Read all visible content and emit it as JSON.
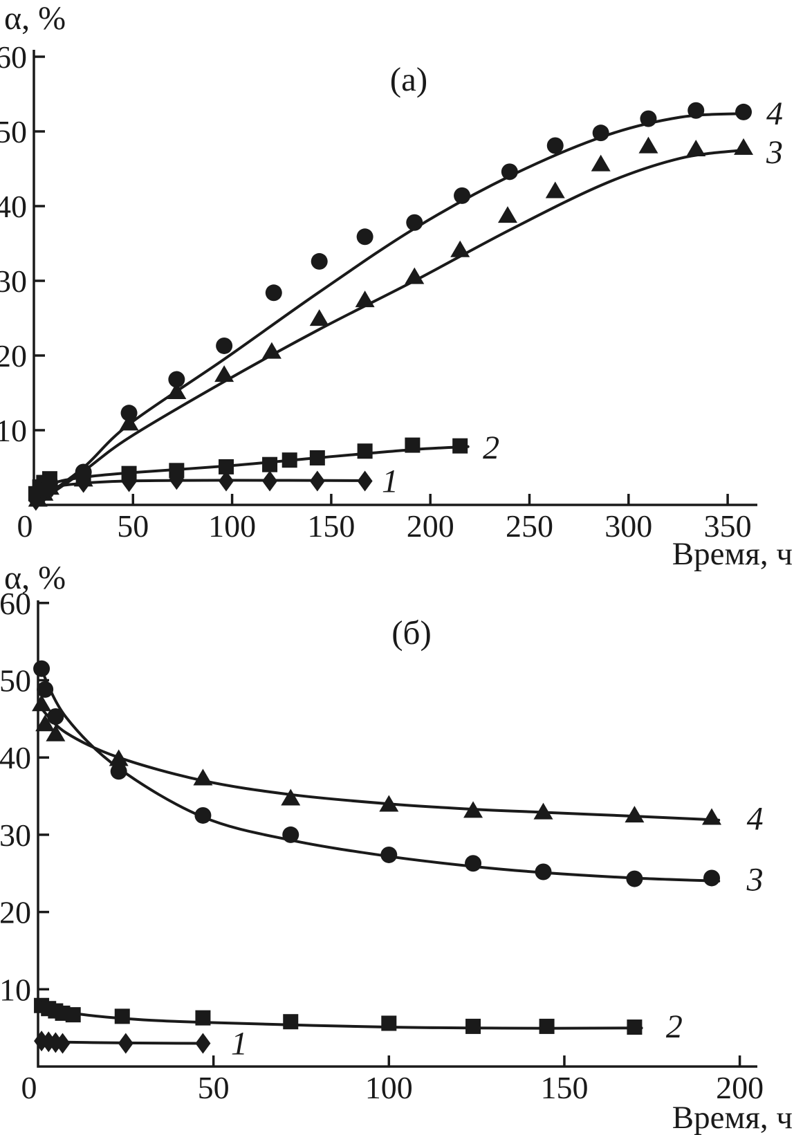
{
  "figure": {
    "background": "#ffffff",
    "ink_color": "#1a1a1a"
  },
  "chart_data": [
    {
      "type": "line",
      "panel_label": "(а)",
      "xlabel": "Время, ч",
      "ylabel": "α, %",
      "xlim": [
        0,
        365
      ],
      "ylim": [
        0,
        60
      ],
      "x_ticks": [
        0,
        50,
        100,
        150,
        200,
        250,
        300,
        350
      ],
      "y_ticks": [
        10,
        20,
        30,
        40,
        50,
        60
      ],
      "grid": false,
      "legend_position": "labels-at-line-ends",
      "series": [
        {
          "name": "1",
          "marker": "diamond",
          "label_at": [
            172,
            3.2
          ],
          "points": [
            [
              1,
              0.6
            ],
            [
              2,
              1.1
            ],
            [
              4,
              1.6
            ],
            [
              6,
              2.0
            ],
            [
              9,
              2.4
            ],
            [
              25,
              3.0
            ],
            [
              48,
              3.1
            ],
            [
              72,
              3.4
            ],
            [
              97,
              3.2
            ],
            [
              119,
              3.2
            ],
            [
              143,
              3.2
            ],
            [
              167,
              3.2
            ]
          ],
          "curve": [
            [
              1,
              0.6
            ],
            [
              10,
              2.3
            ],
            [
              25,
              2.9
            ],
            [
              48,
              3.2
            ],
            [
              97,
              3.3
            ],
            [
              167,
              3.25
            ]
          ]
        },
        {
          "name": "2",
          "marker": "square",
          "label_at": [
            223,
            7.7
          ],
          "points": [
            [
              1,
              1.5
            ],
            [
              3,
              2.4
            ],
            [
              5,
              3.0
            ],
            [
              8,
              3.5
            ],
            [
              25,
              3.8
            ],
            [
              48,
              4.2
            ],
            [
              72,
              4.6
            ],
            [
              97,
              5.1
            ],
            [
              119,
              5.4
            ],
            [
              129,
              6.0
            ],
            [
              143,
              6.3
            ],
            [
              167,
              7.2
            ],
            [
              191,
              8.0
            ],
            [
              215,
              7.9
            ]
          ],
          "curve": [
            [
              1,
              1.2
            ],
            [
              10,
              2.9
            ],
            [
              25,
              3.7
            ],
            [
              48,
              4.3
            ],
            [
              97,
              5.2
            ],
            [
              143,
              6.3
            ],
            [
              191,
              7.4
            ],
            [
              219,
              7.8
            ]
          ]
        },
        {
          "name": "3",
          "marker": "triangle",
          "label_at": [
            366,
            47.2
          ],
          "points": [
            [
              2,
              0.6
            ],
            [
              5,
              1.4
            ],
            [
              8,
              2.2
            ],
            [
              25,
              3.3
            ],
            [
              48,
              10.8
            ],
            [
              72,
              15.0
            ],
            [
              96,
              17.3
            ],
            [
              120,
              20.4
            ],
            [
              144,
              24.8
            ],
            [
              167,
              27.3
            ],
            [
              192,
              30.4
            ],
            [
              215,
              34.0
            ],
            [
              239,
              38.6
            ],
            [
              263,
              41.9
            ],
            [
              286,
              45.5
            ],
            [
              310,
              47.9
            ],
            [
              334,
              47.5
            ],
            [
              358,
              47.7
            ]
          ],
          "curve": [
            [
              2,
              0.3
            ],
            [
              25,
              4.5
            ],
            [
              48,
              9.0
            ],
            [
              96,
              16.5
            ],
            [
              144,
              23.5
            ],
            [
              192,
              30.0
            ],
            [
              240,
              36.8
            ],
            [
              288,
              43.0
            ],
            [
              326,
              46.4
            ],
            [
              358,
              47.5
            ]
          ]
        },
        {
          "name": "4",
          "marker": "circle",
          "label_at": [
            366,
            52.4
          ],
          "points": [
            [
              2,
              1.0
            ],
            [
              5,
              2.0
            ],
            [
              8,
              3.0
            ],
            [
              25,
              4.4
            ],
            [
              48,
              12.3
            ],
            [
              72,
              16.8
            ],
            [
              96,
              21.3
            ],
            [
              121,
              28.4
            ],
            [
              144,
              32.6
            ],
            [
              167,
              35.9
            ],
            [
              192,
              37.8
            ],
            [
              216,
              41.4
            ],
            [
              240,
              44.6
            ],
            [
              263,
              48.1
            ],
            [
              286,
              49.8
            ],
            [
              310,
              51.7
            ],
            [
              334,
              52.8
            ],
            [
              358,
              52.6
            ]
          ],
          "curve": [
            [
              2,
              0.5
            ],
            [
              25,
              5.0
            ],
            [
              48,
              10.8
            ],
            [
              96,
              19.5
            ],
            [
              144,
              28.5
            ],
            [
              192,
              37.0
            ],
            [
              240,
              44.0
            ],
            [
              288,
              49.4
            ],
            [
              326,
              51.9
            ],
            [
              358,
              52.4
            ]
          ]
        }
      ]
    },
    {
      "type": "line",
      "panel_label": "(б)",
      "xlabel": "Время, ч",
      "ylabel": "α, %",
      "xlim": [
        0,
        205
      ],
      "ylim": [
        0,
        60
      ],
      "x_ticks": [
        0,
        50,
        100,
        150,
        200
      ],
      "y_ticks": [
        10,
        20,
        30,
        40,
        50,
        60
      ],
      "grid": false,
      "legend_position": "labels-at-line-ends",
      "series": [
        {
          "name": "1",
          "marker": "diamond",
          "label_at": [
            53,
            3.0
          ],
          "points": [
            [
              1,
              3.3
            ],
            [
              3,
              3.2
            ],
            [
              5,
              3.1
            ],
            [
              7,
              3.0
            ],
            [
              25,
              3.0
            ],
            [
              47,
              3.0
            ]
          ],
          "curve": [
            [
              1,
              3.2
            ],
            [
              25,
              3.05
            ],
            [
              47,
              3.0
            ]
          ]
        },
        {
          "name": "2",
          "marker": "square",
          "label_at": [
            177,
            5.2
          ],
          "points": [
            [
              1,
              7.9
            ],
            [
              3,
              7.5
            ],
            [
              5,
              7.2
            ],
            [
              7,
              6.9
            ],
            [
              10,
              6.7
            ],
            [
              24,
              6.5
            ],
            [
              47,
              6.3
            ],
            [
              72,
              5.8
            ],
            [
              100,
              5.6
            ],
            [
              124,
              5.2
            ],
            [
              145,
              5.2
            ],
            [
              170,
              5.1
            ]
          ],
          "curve": [
            [
              1,
              7.8
            ],
            [
              10,
              6.9
            ],
            [
              25,
              6.2
            ],
            [
              48,
              5.7
            ],
            [
              100,
              5.1
            ],
            [
              145,
              4.95
            ],
            [
              172,
              5.0
            ]
          ]
        },
        {
          "name": "3",
          "marker": "circle",
          "label_at": [
            200,
            24.2
          ],
          "points": [
            [
              1,
              51.5
            ],
            [
              2,
              48.8
            ],
            [
              5,
              45.3
            ],
            [
              23,
              38.2
            ],
            [
              47,
              32.5
            ],
            [
              72,
              30.0
            ],
            [
              100,
              27.4
            ],
            [
              124,
              26.3
            ],
            [
              144,
              25.2
            ],
            [
              170,
              24.3
            ],
            [
              192,
              24.4
            ]
          ],
          "curve": [
            [
              1,
              51.3
            ],
            [
              8,
              45.2
            ],
            [
              23,
              38.6
            ],
            [
              47,
              32.3
            ],
            [
              72,
              29.3
            ],
            [
              100,
              27.2
            ],
            [
              124,
              25.9
            ],
            [
              144,
              25.1
            ],
            [
              170,
              24.4
            ],
            [
              194,
              24.0
            ]
          ]
        },
        {
          "name": "4",
          "marker": "triangle",
          "label_at": [
            200,
            32.1
          ],
          "points": [
            [
              1,
              46.8
            ],
            [
              2,
              44.2
            ],
            [
              5,
              42.9
            ],
            [
              23,
              39.7
            ],
            [
              47,
              37.2
            ],
            [
              72,
              34.6
            ],
            [
              100,
              33.8
            ],
            [
              124,
              33.0
            ],
            [
              144,
              32.8
            ],
            [
              170,
              32.4
            ],
            [
              192,
              32.1
            ]
          ],
          "curve": [
            [
              1,
              46.3
            ],
            [
              8,
              43.2
            ],
            [
              23,
              40.0
            ],
            [
              47,
              37.0
            ],
            [
              72,
              35.2
            ],
            [
              100,
              34.0
            ],
            [
              124,
              33.3
            ],
            [
              144,
              32.9
            ],
            [
              170,
              32.4
            ],
            [
              194,
              31.9
            ]
          ]
        }
      ]
    }
  ]
}
